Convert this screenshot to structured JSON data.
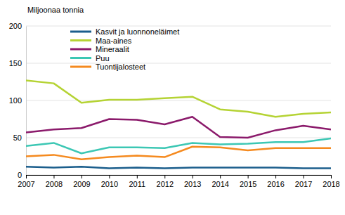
{
  "chart_data": {
    "type": "line",
    "y_label": "Miljoonaa tonnia",
    "x": [
      2007,
      2008,
      2009,
      2010,
      2011,
      2012,
      2013,
      2014,
      2015,
      2016,
      2017,
      2018
    ],
    "xlim": [
      2007,
      2018
    ],
    "xticks": [
      2007,
      2008,
      2009,
      2010,
      2011,
      2012,
      2013,
      2014,
      2015,
      2016,
      2017,
      2018
    ],
    "ylim": [
      0,
      200
    ],
    "yticks": [
      0,
      50,
      100,
      150,
      200
    ],
    "grid": true,
    "legend": "upper left",
    "series": [
      {
        "name": "Kasvit ja luonnoneläimet",
        "color": "#1b5e8c",
        "values": [
          11,
          10,
          11,
          9,
          10,
          9,
          10,
          10,
          10,
          10,
          9,
          9
        ]
      },
      {
        "name": "Maa-aines",
        "color": "#b5d334",
        "values": [
          127,
          123,
          97,
          101,
          101,
          103,
          105,
          88,
          85,
          78,
          82,
          84
        ]
      },
      {
        "name": "Mineraalit",
        "color": "#8b1a6b",
        "values": [
          57,
          61,
          63,
          75,
          74,
          68,
          78,
          51,
          50,
          60,
          66,
          61
        ]
      },
      {
        "name": "Puu",
        "color": "#3cc7b4",
        "values": [
          39,
          43,
          29,
          37,
          37,
          36,
          43,
          41,
          42,
          44,
          44,
          49
        ]
      },
      {
        "name": "Tuontijalosteet",
        "color": "#f58a1f",
        "values": [
          25,
          27,
          21,
          24,
          26,
          24,
          38,
          37,
          33,
          36,
          36,
          36
        ]
      }
    ]
  }
}
